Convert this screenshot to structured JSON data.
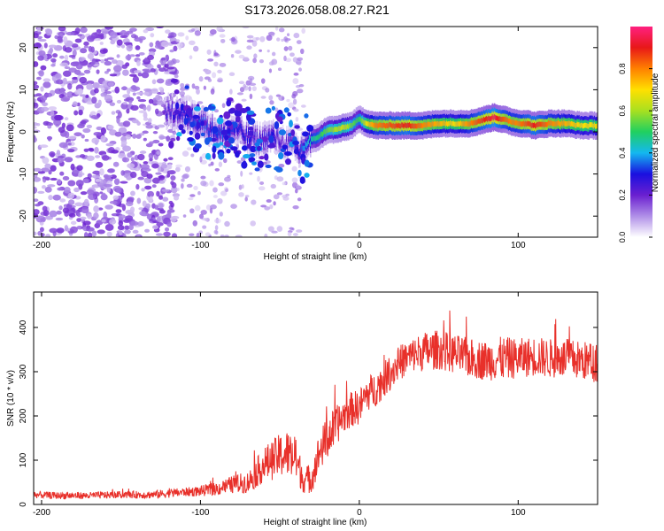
{
  "title": "S173.2026.058.08.27.R21",
  "colors": {
    "axis": "#000000",
    "snr_line": "#e8302a",
    "scatter": "#7a1fd6"
  },
  "chart_data": [
    {
      "type": "heatmap",
      "name": "spectrogram",
      "xlabel": "Height of straight line (km)",
      "ylabel": "Frequency (Hz)",
      "xlim": [
        -205,
        150
      ],
      "ylim": [
        -25,
        25
      ],
      "xticks": [
        -200,
        -100,
        0,
        100
      ],
      "xtick_labels": [
        "-200",
        "-100",
        "0",
        "100"
      ],
      "yticks": [
        -20,
        -10,
        0,
        10,
        20
      ],
      "ytick_labels": [
        "-20",
        "-10",
        "0",
        "10",
        "20"
      ],
      "colorbar": {
        "label": "Normalized spectral amplitude",
        "range": [
          0,
          1
        ],
        "ticks": [
          0.0,
          0.2,
          0.4,
          0.6,
          0.8
        ],
        "tick_labels": [
          "0.0",
          "0.2",
          "0.4",
          "0.6",
          "0.8"
        ],
        "colormap": [
          "#ffffff",
          "#b08fe8",
          "#6a1fd0",
          "#1a10e0",
          "#14b8f0",
          "#20d060",
          "#a8e020",
          "#ffe000",
          "#ff8000",
          "#e81818",
          "#ff2080"
        ]
      },
      "ridge": {
        "x": [
          -122,
          -110,
          -100,
          -92,
          -85,
          -78,
          -70,
          -62,
          -55,
          -48,
          -42,
          -38,
          -34,
          -30,
          -25,
          -20,
          -15,
          -10,
          -5,
          0,
          5,
          10,
          20,
          30,
          40,
          50,
          60,
          70,
          80,
          85,
          90,
          95,
          100,
          105,
          110,
          120,
          130,
          140,
          150
        ],
        "y": [
          5,
          4,
          2.5,
          0.5,
          -1,
          1,
          -1.5,
          -2,
          -1,
          -2.5,
          -3,
          -5,
          -3,
          -2,
          -1,
          0.5,
          0.5,
          1,
          1.5,
          3,
          2,
          1.5,
          1.5,
          1.5,
          1.5,
          2,
          2,
          2,
          3,
          3.5,
          3,
          2.5,
          2,
          2,
          1.5,
          2,
          2,
          1.5,
          1.5
        ],
        "amplitude": [
          0.25,
          0.3,
          0.35,
          0.3,
          0.35,
          0.3,
          0.3,
          0.25,
          0.3,
          0.2,
          0.25,
          0.3,
          0.4,
          0.45,
          0.5,
          0.55,
          0.6,
          0.65,
          0.55,
          0.5,
          0.7,
          0.8,
          0.85,
          0.9,
          0.8,
          0.75,
          0.7,
          0.8,
          0.9,
          0.95,
          0.85,
          0.8,
          0.8,
          0.85,
          0.9,
          0.8,
          0.75,
          0.7,
          0.7
        ]
      },
      "noise_region": {
        "x_range": [
          -205,
          -115
        ],
        "y_range": [
          -25,
          25
        ],
        "amplitude_range": [
          0.05,
          0.2
        ]
      }
    },
    {
      "type": "line",
      "name": "snr",
      "xlabel": "Height of straight line (km)",
      "ylabel": "SNR (10 * v/v)",
      "xlim": [
        -205,
        150
      ],
      "ylim": [
        0,
        480
      ],
      "xticks": [
        -200,
        -100,
        0,
        100
      ],
      "xtick_labels": [
        "-200",
        "-100",
        "0",
        "100"
      ],
      "yticks": [
        0,
        100,
        200,
        300,
        400
      ],
      "ytick_labels": [
        "0",
        "100",
        "200",
        "300",
        "400"
      ],
      "series": [
        {
          "name": "SNR",
          "x": [
            -205,
            -190,
            -170,
            -150,
            -130,
            -120,
            -110,
            -100,
            -90,
            -80,
            -70,
            -60,
            -50,
            -45,
            -40,
            -35,
            -30,
            -25,
            -20,
            -15,
            -10,
            -5,
            0,
            5,
            10,
            15,
            20,
            25,
            30,
            35,
            40,
            50,
            60,
            70,
            80,
            90,
            100,
            110,
            120,
            130,
            140,
            150
          ],
          "y": [
            22,
            20,
            20,
            22,
            22,
            25,
            28,
            30,
            35,
            45,
            50,
            90,
            110,
            115,
            100,
            55,
            60,
            120,
            150,
            175,
            200,
            215,
            220,
            250,
            260,
            280,
            300,
            320,
            330,
            340,
            345,
            350,
            340,
            330,
            325,
            330,
            330,
            335,
            330,
            330,
            325,
            320
          ],
          "noise_amplitude": [
            8,
            8,
            8,
            8,
            9,
            10,
            10,
            12,
            15,
            20,
            25,
            40,
            50,
            55,
            50,
            30,
            35,
            45,
            50,
            45,
            40,
            40,
            40,
            40,
            40,
            40,
            40,
            40,
            40,
            40,
            45,
            45,
            45,
            45,
            45,
            50,
            45,
            45,
            45,
            45,
            45,
            45
          ]
        }
      ]
    }
  ]
}
